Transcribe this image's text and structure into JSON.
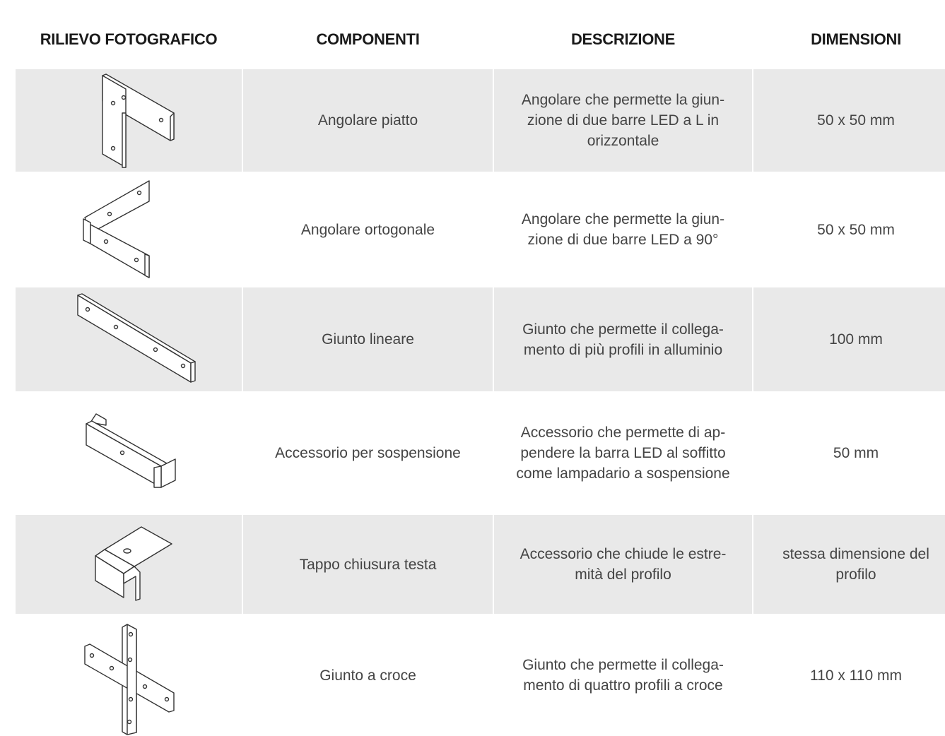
{
  "table": {
    "header": [
      "RILIEVO FOTOGRAFICO",
      "COMPONENTI",
      "DESCRIZIONE",
      "DIMENSIONI"
    ],
    "rows": [
      [
        "Angolare piatto",
        "Angolare che permette la giun-\nzione di due barre LED a L in\norizzontale",
        "50 x 50 mm"
      ],
      [
        "Angolare ortogonale",
        "Angolare che permette la giun-\nzione di due barre LED a 90°",
        "50 x 50 mm"
      ],
      [
        "Giunto lineare",
        "Giunto che permette il collega-\nmento di più profili in alluminio",
        "100 mm"
      ],
      [
        "Accessorio per sospensione",
        "Accessorio che permette di ap-\npendere la barra LED al soffitto\ncome lampadario a sospensione",
        "50 mm"
      ],
      [
        "Tappo chiusura testa",
        "Accessorio che chiude le estre-\nmità del profilo",
        "stessa dimensione del\nprofilo"
      ],
      [
        "Giunto a croce",
        "Giunto che permette il collega-\nmento di quattro profili a croce",
        "110 x 110 mm"
      ]
    ]
  }
}
